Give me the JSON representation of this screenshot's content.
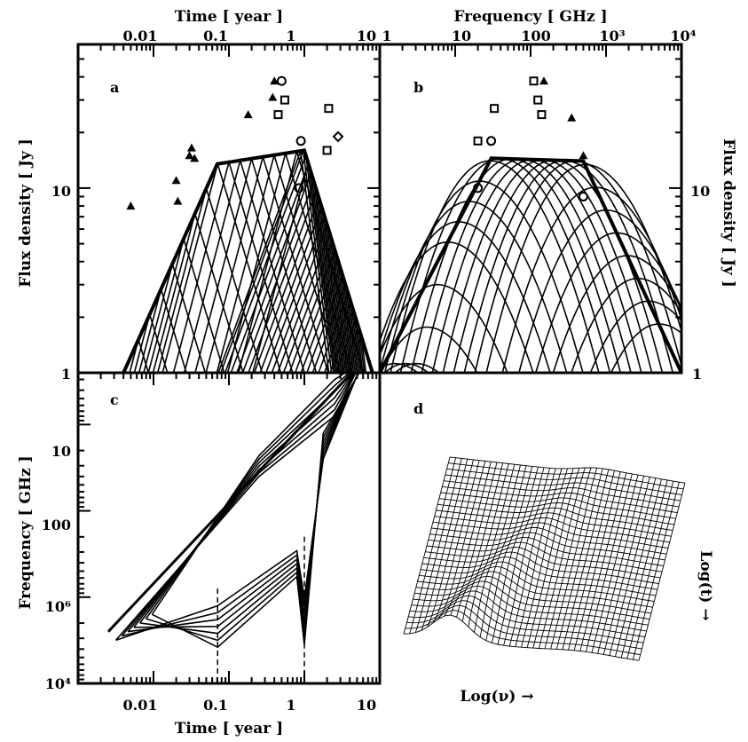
{
  "chart_data": [
    {
      "panel": "a",
      "type": "line",
      "xlabel": "Time [ year ]",
      "ylabel": "Flux density [ Jy ]",
      "x_scale": "log",
      "y_scale": "log",
      "xlim": [
        0.001,
        10
      ],
      "ylim": [
        1,
        60
      ],
      "x_ticks": [
        "0.01",
        "0.1",
        "1",
        "10"
      ],
      "y_ticks": [
        "1",
        "10"
      ],
      "envelope": [
        [
          0.004,
          1
        ],
        [
          0.07,
          13.5
        ],
        [
          1,
          16
        ],
        [
          8,
          1
        ]
      ],
      "observations": [
        {
          "marker": "triangle",
          "x": 0.005,
          "y": 8
        },
        {
          "marker": "triangle",
          "x": 0.02,
          "y": 11
        },
        {
          "marker": "triangle",
          "x": 0.021,
          "y": 8.5
        },
        {
          "marker": "triangle",
          "x": 0.03,
          "y": 15
        },
        {
          "marker": "triangle",
          "x": 0.032,
          "y": 16.5
        },
        {
          "marker": "triangle",
          "x": 0.035,
          "y": 14.5
        },
        {
          "marker": "triangle",
          "x": 0.18,
          "y": 25
        },
        {
          "marker": "triangle",
          "x": 0.4,
          "y": 38
        },
        {
          "marker": "triangle",
          "x": 0.38,
          "y": 31
        },
        {
          "marker": "square",
          "x": 0.45,
          "y": 25
        },
        {
          "marker": "square",
          "x": 0.55,
          "y": 30
        },
        {
          "marker": "circle",
          "x": 0.5,
          "y": 38
        },
        {
          "marker": "circle",
          "x": 0.9,
          "y": 18
        },
        {
          "marker": "circle",
          "x": 0.85,
          "y": 10
        },
        {
          "marker": "square",
          "x": 2,
          "y": 16
        },
        {
          "marker": "square",
          "x": 2.1,
          "y": 27
        },
        {
          "marker": "diamond",
          "x": 2.8,
          "y": 19
        }
      ]
    },
    {
      "panel": "b",
      "type": "line",
      "xlabel": "Frequency [ GHz ]",
      "ylabel": "Flux density [ Jy ]",
      "x_scale": "log",
      "y_scale": "log",
      "xlim": [
        1,
        10000
      ],
      "ylim": [
        1,
        60
      ],
      "x_ticks": [
        "1",
        "10",
        "100",
        "10³",
        "10⁴"
      ],
      "y_ticks": [
        "1",
        "10"
      ],
      "envelope": [
        [
          1,
          1
        ],
        [
          30,
          14.5
        ],
        [
          500,
          14
        ],
        [
          10000,
          1
        ]
      ],
      "observations": [
        {
          "marker": "square",
          "x": 20,
          "y": 18
        },
        {
          "marker": "circle",
          "x": 30,
          "y": 18
        },
        {
          "marker": "square",
          "x": 33,
          "y": 27
        },
        {
          "marker": "square",
          "x": 110,
          "y": 38
        },
        {
          "marker": "triangle",
          "x": 150,
          "y": 38
        },
        {
          "marker": "square",
          "x": 125,
          "y": 30
        },
        {
          "marker": "square",
          "x": 140,
          "y": 25
        },
        {
          "marker": "triangle",
          "x": 350,
          "y": 24
        },
        {
          "marker": "triangle",
          "x": 500,
          "y": 15
        },
        {
          "marker": "circle",
          "x": 20,
          "y": 10
        },
        {
          "marker": "circle",
          "x": 500,
          "y": 9
        }
      ]
    },
    {
      "panel": "c",
      "type": "line",
      "xlabel": "Time [ year ]",
      "ylabel": "Frequency [ GHz ]",
      "x_scale": "log",
      "y_scale": "log",
      "xlim": [
        0.001,
        10
      ],
      "ylim": [
        10000,
        1
      ],
      "x_ticks": [
        "0.01",
        "0.1",
        "1",
        "10"
      ],
      "y_ticks": [
        "10",
        "100",
        "10⁶",
        "10⁴"
      ]
    },
    {
      "panel": "d",
      "type": "surface",
      "xlabel": "Log(ν) →",
      "ylabel": "Log(t) →"
    }
  ]
}
